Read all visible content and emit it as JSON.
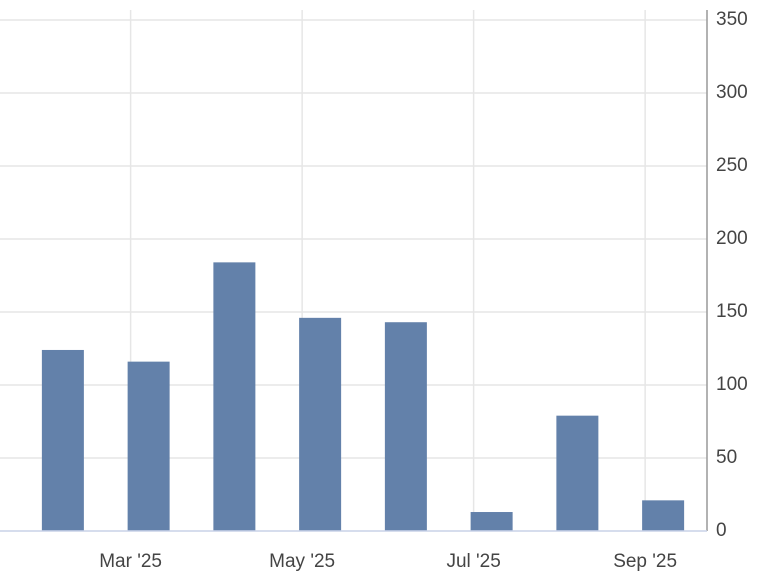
{
  "chart_data": {
    "type": "bar",
    "categories": [
      null,
      "Mar '25",
      null,
      "May '25",
      null,
      "Jul '25",
      null,
      "Sep '25"
    ],
    "values": [
      124,
      116,
      184,
      146,
      143,
      13,
      79,
      21
    ],
    "color": "#6381aa",
    "ylim": [
      0,
      350
    ],
    "yticks": [
      0,
      50,
      100,
      150,
      200,
      250,
      300,
      350
    ],
    "grid": true
  }
}
